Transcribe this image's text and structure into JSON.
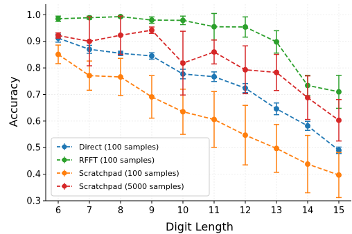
{
  "chart_data": {
    "type": "line",
    "title": "",
    "xlabel": "Digit Length",
    "ylabel": "Accuracy",
    "x": [
      6,
      7,
      8,
      9,
      10,
      11,
      12,
      13,
      14,
      15
    ],
    "xlim": [
      5.6,
      15.4
    ],
    "ylim": [
      0.3,
      1.04
    ],
    "yticks": [
      0.3,
      0.4,
      0.5,
      0.6,
      0.7,
      0.8,
      0.9,
      1.0
    ],
    "grid": true,
    "legend_position": "bottom-left",
    "series": [
      {
        "name": "Direct (100 samples)",
        "color": "#1f77b4",
        "values": [
          0.912,
          0.87,
          0.855,
          0.845,
          0.777,
          0.767,
          0.724,
          0.646,
          0.582,
          0.49
        ],
        "errors": [
          0.015,
          0.015,
          0.008,
          0.012,
          0.018,
          0.018,
          0.017,
          0.022,
          0.017,
          0.012
        ]
      },
      {
        "name": "RFFT (100 samples)",
        "color": "#2ca02c",
        "values": [
          0.985,
          0.989,
          0.993,
          0.98,
          0.979,
          0.955,
          0.954,
          0.898,
          0.734,
          0.71
        ],
        "errors": [
          0.01,
          0.006,
          0.004,
          0.012,
          0.016,
          0.05,
          0.038,
          0.042,
          0.038,
          0.062
        ]
      },
      {
        "name": "Scratchpad (100 samples)",
        "color": "#ff7f0e",
        "values": [
          0.851,
          0.771,
          0.766,
          0.691,
          0.635,
          0.606,
          0.547,
          0.497,
          0.438,
          0.397
        ],
        "errors": [
          0.035,
          0.055,
          0.07,
          0.08,
          0.085,
          0.105,
          0.112,
          0.09,
          0.108,
          0.085
        ]
      },
      {
        "name": "Scratchpad (5000 samples)",
        "color": "#d62728",
        "values": [
          0.922,
          0.9,
          0.923,
          0.942,
          0.818,
          0.86,
          0.793,
          0.783,
          0.688,
          0.603
        ],
        "errors": [
          0.01,
          0.092,
          0.072,
          0.012,
          0.12,
          0.045,
          0.09,
          0.068,
          0.082,
          0.078
        ]
      }
    ]
  }
}
